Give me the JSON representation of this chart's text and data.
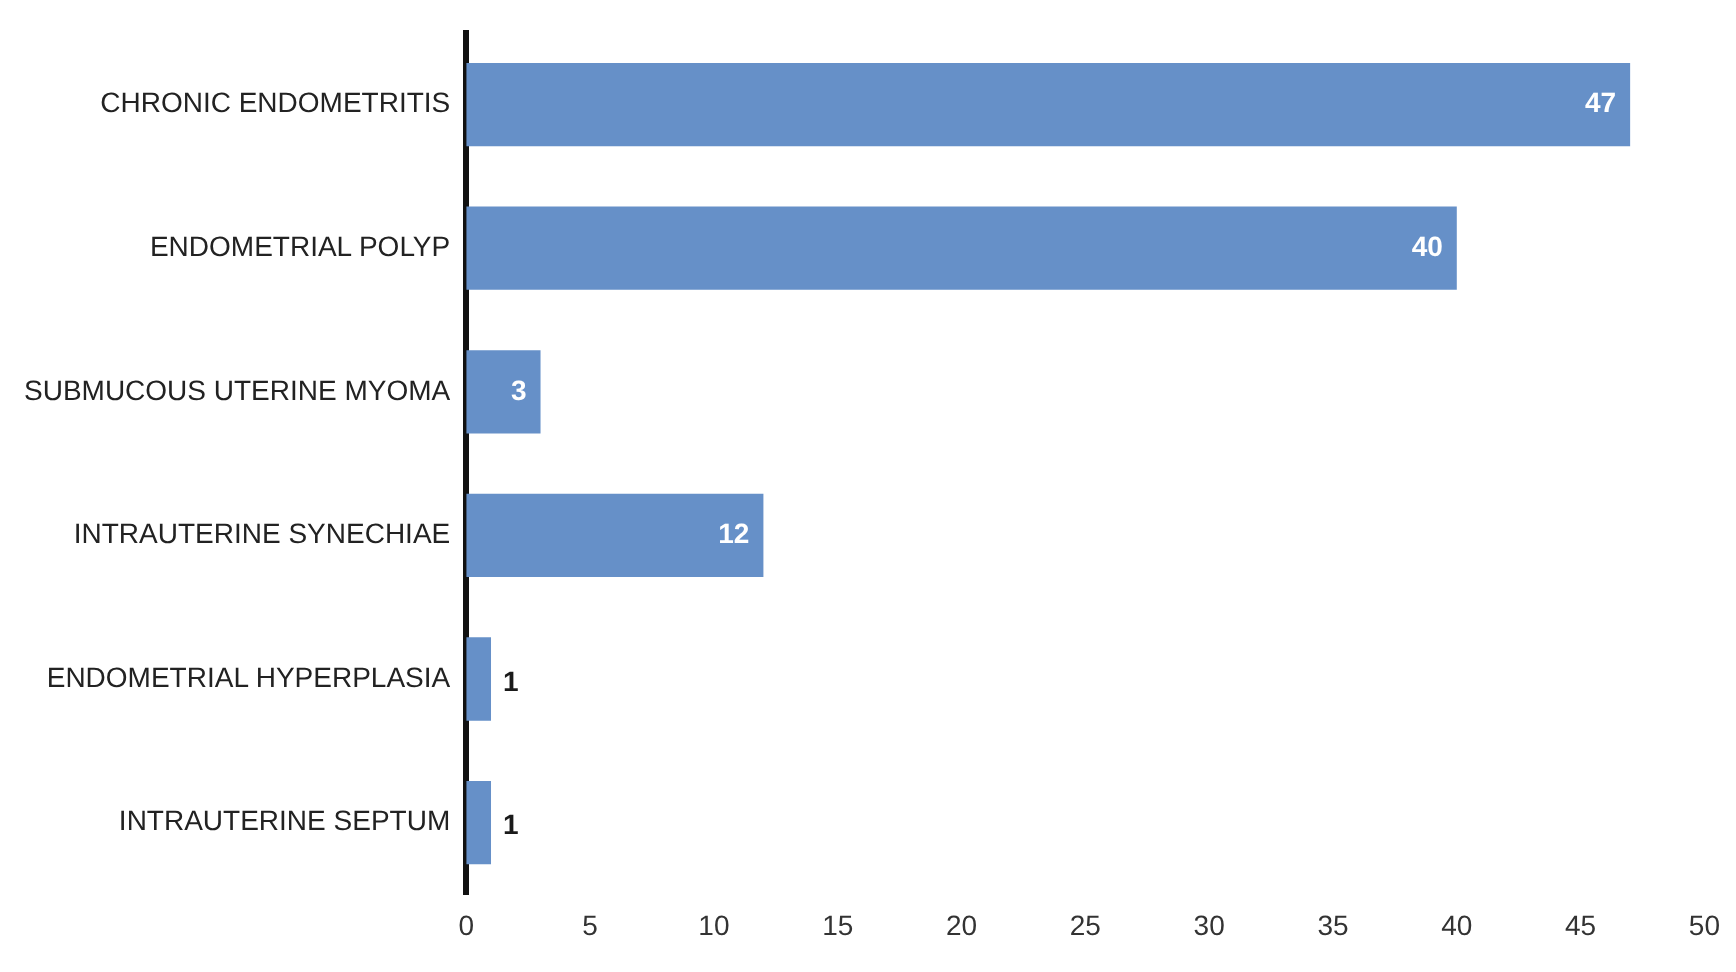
{
  "chart_data": {
    "type": "bar",
    "orientation": "horizontal",
    "categories": [
      "CHRONIC ENDOMETRITIS",
      "ENDOMETRIAL POLYP",
      "SUBMUCOUS UTERINE MYOMA",
      "INTRAUTERINE SYNECHIAE",
      "ENDOMETRIAL HYPERPLASIA",
      "INTRAUTERINE SEPTUM"
    ],
    "values": [
      47,
      40,
      3,
      12,
      1,
      1
    ],
    "color": "#6690c8",
    "xlim": [
      0,
      50
    ],
    "xticks": [
      0,
      5,
      10,
      15,
      20,
      25,
      30,
      35,
      40,
      45,
      50
    ],
    "grid": false,
    "legend": false,
    "data_labels": true
  }
}
